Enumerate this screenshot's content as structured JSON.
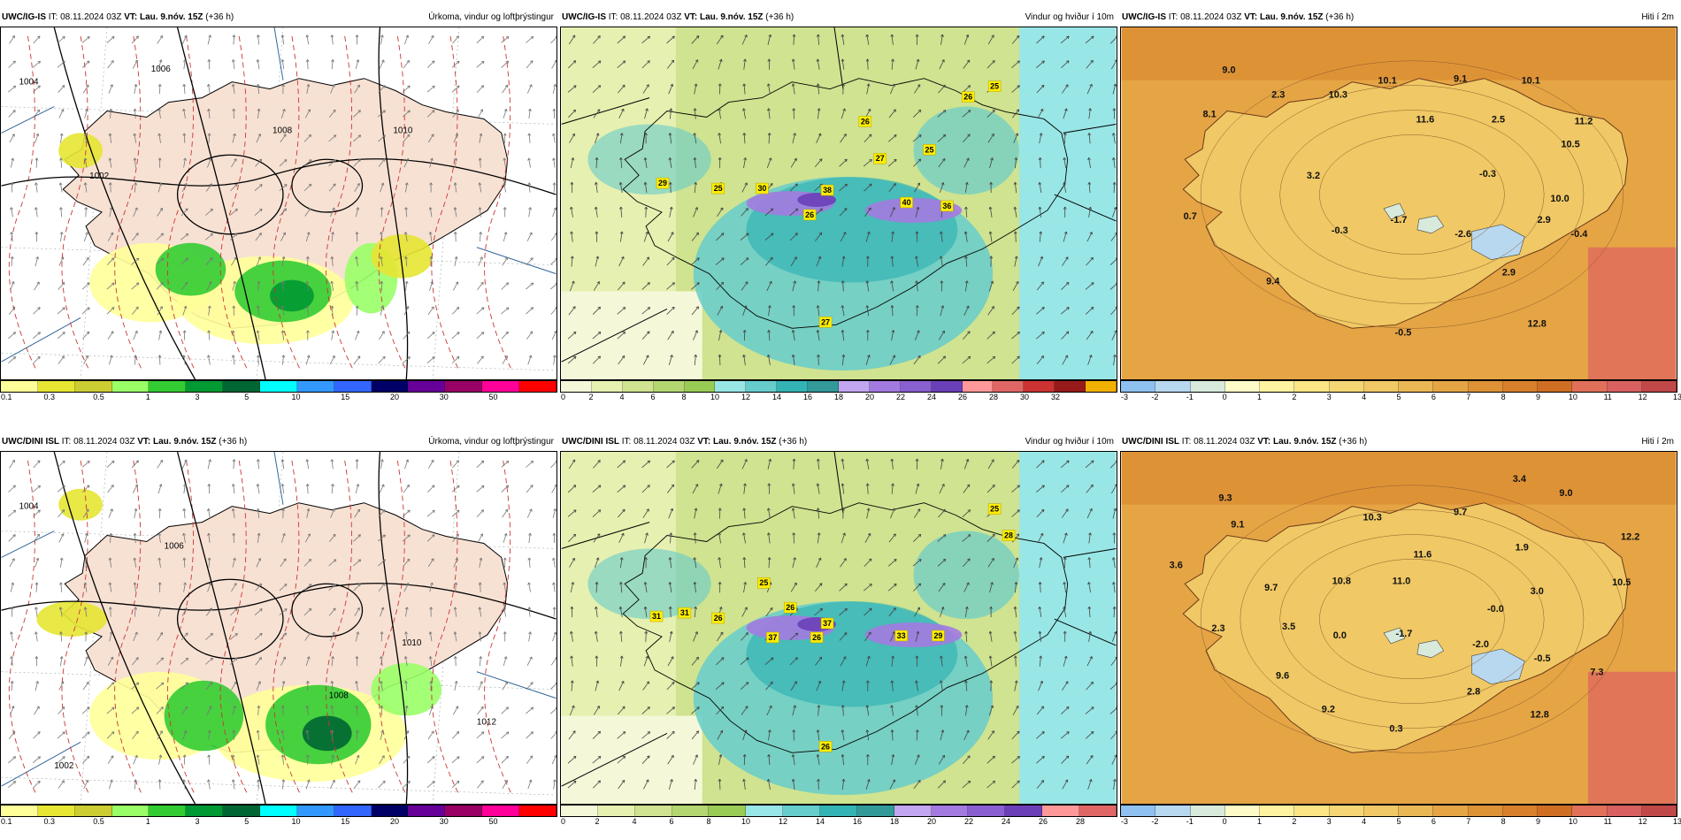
{
  "panels": [
    {
      "model": "UWC/IG-IS",
      "it": "IT: 08.11.2024 03Z",
      "vt": "VT: Lau. 9.nóv. 15Z",
      "lead": "(+36 h)",
      "field": "Úrkoma, vindur og loftþrýstingur",
      "type": "precip",
      "colors": [
        "#ffff99",
        "#e6e633",
        "#cccc33",
        "#99ff66",
        "#33cc33",
        "#009933",
        "#006633",
        "#00ffff",
        "#3399ff",
        "#3366ff",
        "#000066",
        "#660099",
        "#990066",
        "#ff0099",
        "#ff0000"
      ],
      "ticks": [
        "0.1",
        "0.3",
        "0.5",
        "1",
        "3",
        "5",
        "10",
        "15",
        "20",
        "30",
        "50"
      ],
      "isobars": [
        "1002",
        "1004",
        "1006",
        "1008",
        "1010"
      ],
      "labels": []
    },
    {
      "model": "UWC/IG-IS",
      "it": "IT: 08.11.2024 03Z",
      "vt": "VT: Lau. 9.nóv. 15Z",
      "lead": "(+36 h)",
      "field": "Vindur og hviður í 10m",
      "type": "wind",
      "colors": [
        "#f5f8d8",
        "#e6f0b0",
        "#cfe390",
        "#b3d670",
        "#99cc55",
        "#99e6e6",
        "#66cccc",
        "#33b3b3",
        "#339999",
        "#c2a6f0",
        "#a37ae0",
        "#8a5fd0",
        "#6b3fb8",
        "#ff9999",
        "#e06666",
        "#cc3333",
        "#991a1a",
        "#f0b000"
      ],
      "ticks": [
        "0",
        "2",
        "4",
        "6",
        "8",
        "10",
        "12",
        "14",
        "16",
        "18",
        "20",
        "22",
        "24",
        "26",
        "28",
        "30",
        "32"
      ],
      "labels": [
        "26",
        "25",
        "26",
        "27",
        "25",
        "29",
        "25",
        "30",
        "38",
        "40",
        "36",
        "26",
        "27"
      ]
    },
    {
      "model": "UWC/IG-IS",
      "it": "IT: 08.11.2024 03Z",
      "vt": "VT: Lau. 9.nóv. 15Z",
      "lead": "(+36 h)",
      "field": "Hiti í 2m",
      "type": "temp",
      "colors": [
        "#8fc1f0",
        "#b8d8f0",
        "#d8eadb",
        "#fffbc8",
        "#fff2a0",
        "#fbe585",
        "#f5d675",
        "#f0c865",
        "#eab755",
        "#e5a545",
        "#de9236",
        "#d8802c",
        "#d06e24",
        "#e0705a",
        "#d86060",
        "#c04848"
      ],
      "ticks": [
        "-3",
        "-2",
        "-1",
        "0",
        "1",
        "2",
        "3",
        "4",
        "5",
        "6",
        "7",
        "8",
        "9",
        "10",
        "11",
        "12",
        "13"
      ],
      "labels": [
        "9.0",
        "2.3",
        "10.1",
        "9.1",
        "10.1",
        "8.1",
        "10.3",
        "11.6",
        "2.5",
        "11.2",
        "10.5",
        "10.0",
        "3.2",
        "-0.3",
        "0.7",
        "-0.3",
        "-1.7",
        "-2.6",
        "2.9",
        "-0.4",
        "9.4",
        "2.9",
        "12.8",
        "-0.5"
      ]
    },
    {
      "model": "UWC/DINI ISL",
      "it": "IT: 08.11.2024 03Z",
      "vt": "VT: Lau. 9.nóv. 15Z",
      "lead": "(+36 h)",
      "field": "Úrkoma, vindur og loftþrýstingur",
      "type": "precip",
      "colors": [
        "#ffff99",
        "#e6e633",
        "#cccc33",
        "#99ff66",
        "#33cc33",
        "#009933",
        "#006633",
        "#00ffff",
        "#3399ff",
        "#3366ff",
        "#000066",
        "#660099",
        "#990066",
        "#ff0099",
        "#ff0000"
      ],
      "ticks": [
        "0.1",
        "0.3",
        "0.5",
        "1",
        "3",
        "5",
        "10",
        "15",
        "20",
        "30",
        "50"
      ],
      "isobars": [
        "1002",
        "1004",
        "1006",
        "1008",
        "1010",
        "1012"
      ],
      "labels": []
    },
    {
      "model": "UWC/DINI ISL",
      "it": "IT: 08.11.2024 03Z",
      "vt": "VT: Lau. 9.nóv. 15Z",
      "lead": "(+36 h)",
      "field": "Vindur og hviður í 10m",
      "type": "wind",
      "colors": [
        "#f5f8d8",
        "#e6f0b0",
        "#cfe390",
        "#b3d670",
        "#99cc55",
        "#99e6e6",
        "#66cccc",
        "#33b3b3",
        "#339999",
        "#c2a6f0",
        "#a37ae0",
        "#8a5fd0",
        "#6b3fb8",
        "#ff9999",
        "#e06666"
      ],
      "ticks": [
        "0",
        "2",
        "4",
        "6",
        "8",
        "10",
        "12",
        "14",
        "16",
        "18",
        "20",
        "22",
        "24",
        "26",
        "28"
      ],
      "labels": [
        "25",
        "28",
        "25",
        "31",
        "31",
        "26",
        "26",
        "37",
        "37",
        "26",
        "33",
        "29",
        "26"
      ]
    },
    {
      "model": "UWC/DINI ISL",
      "it": "IT: 08.11.2024 03Z",
      "vt": "VT: Lau. 9.nóv. 15Z",
      "lead": "(+36 h)",
      "field": "Hiti í 2m",
      "type": "temp",
      "colors": [
        "#8fc1f0",
        "#b8d8f0",
        "#d8eadb",
        "#fffbc8",
        "#fff2a0",
        "#fbe585",
        "#f5d675",
        "#f0c865",
        "#eab755",
        "#e5a545",
        "#de9236",
        "#d8802c",
        "#d06e24",
        "#e0705a",
        "#d86060",
        "#c04848"
      ],
      "ticks": [
        "-3",
        "-2",
        "-1",
        "0",
        "1",
        "2",
        "3",
        "4",
        "5",
        "6",
        "7",
        "8",
        "9",
        "10",
        "11",
        "12",
        "13"
      ],
      "labels": [
        "3.4",
        "9.3",
        "9.0",
        "9.7",
        "9.1",
        "10.3",
        "12.2",
        "3.6",
        "11.6",
        "1.9",
        "10.8",
        "11.0",
        "10.5",
        "9.7",
        "3.0",
        "-0.0",
        "3.5",
        "2.3",
        "0.0",
        "-1.7",
        "-2.0",
        "-0.5",
        "7.3",
        "9.6",
        "2.8",
        "12.8",
        "9.2",
        "0.3"
      ]
    }
  ]
}
